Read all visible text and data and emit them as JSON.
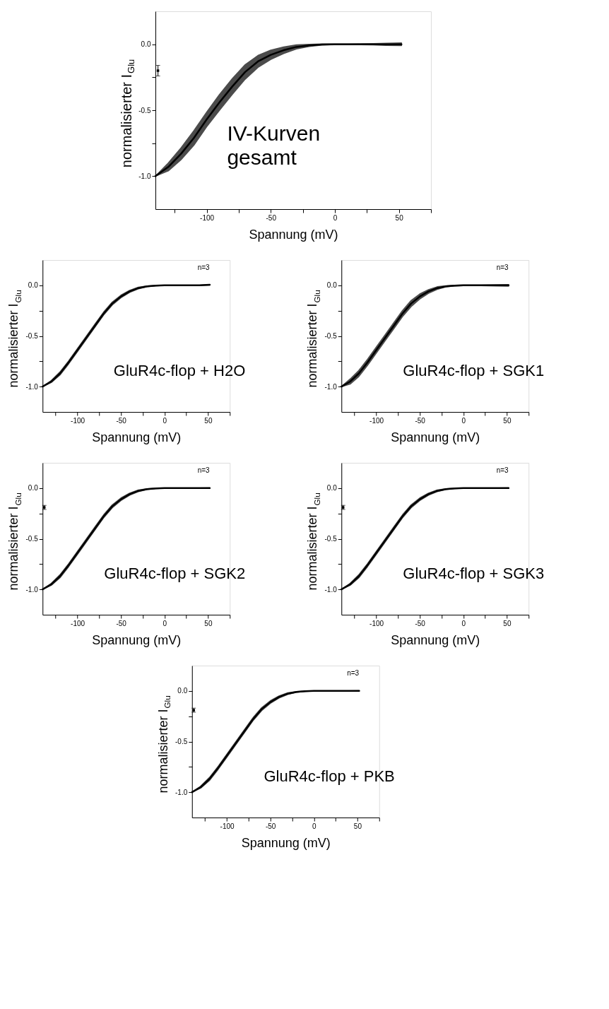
{
  "chart_data": [
    {
      "type": "line",
      "xlabel": "Spannung (mV)",
      "ylabel": "normalisierter I$_{Glu}$",
      "xlim": [
        -140,
        75
      ],
      "ylim": [
        -1.25,
        0.25
      ],
      "xticks": [
        {
          "value": -125,
          "label": null
        },
        -100,
        {
          "value": -75,
          "label": null
        },
        -50,
        {
          "value": -25,
          "label": null
        },
        0,
        {
          "value": 25,
          "label": null
        },
        50,
        {
          "value": 75,
          "label": null
        }
      ],
      "yticks": [
        {
          "value": -1,
          "label": "-1.0"
        },
        {
          "value": -0.75,
          "label": null
        },
        {
          "value": -0.5,
          "label": "-0.5"
        },
        {
          "value": -0.25,
          "label": null
        },
        {
          "value": 0,
          "label": "0.0"
        }
      ],
      "grid": false,
      "annotations": [
        "IV-Kurven\ngesamt"
      ],
      "series": [
        {
          "color": "#000000",
          "x": [
            -140,
            -130,
            -120,
            -110,
            -100,
            -90,
            -80,
            -70,
            -60,
            -50,
            -40,
            -30,
            -20,
            -10,
            0,
            10,
            20,
            30,
            40,
            52
          ],
          "values": [
            -1.0,
            -0.93,
            -0.83,
            -0.71,
            -0.57,
            -0.44,
            -0.32,
            -0.21,
            -0.13,
            -0.08,
            -0.045,
            -0.02,
            -0.008,
            -0.002,
            0,
            0,
            0,
            0,
            0,
            0
          ],
          "lower": [
            -1.0,
            -0.96,
            -0.875,
            -0.765,
            -0.625,
            -0.5,
            -0.38,
            -0.265,
            -0.175,
            -0.115,
            -0.07,
            -0.035,
            -0.016,
            -0.006,
            -0.002,
            -0.002,
            -0.003,
            -0.005,
            -0.008,
            -0.01
          ],
          "upper": [
            -1.0,
            -0.9,
            -0.785,
            -0.655,
            -0.515,
            -0.38,
            -0.26,
            -0.155,
            -0.085,
            -0.045,
            -0.02,
            -0.005,
            0,
            0.002,
            0.002,
            0.002,
            0.003,
            0.005,
            0.008,
            0.01
          ]
        },
        {
          "type": "scatter",
          "marker": "square",
          "color": "#000000",
          "x": [
            -138
          ],
          "values": [
            -0.2
          ],
          "errors": [
            [
              -0.24,
              -0.16
            ]
          ]
        }
      ]
    },
    {
      "type": "line",
      "xlabel": "Spannung (mV)",
      "ylabel": "normalisierter I$_{Glu}$",
      "xlim": [
        -140,
        75
      ],
      "ylim": [
        -1.25,
        0.25
      ],
      "xticks": [
        {
          "value": -125,
          "label": null
        },
        -100,
        {
          "value": -75,
          "label": null
        },
        -50,
        {
          "value": -25,
          "label": null
        },
        0,
        {
          "value": 25,
          "label": null
        },
        50,
        {
          "value": 75,
          "label": null
        }
      ],
      "yticks": [
        {
          "value": -1,
          "label": "-1.0"
        },
        {
          "value": -0.75,
          "label": null
        },
        {
          "value": -0.5,
          "label": "-0.5"
        },
        {
          "value": -0.25,
          "label": null
        },
        {
          "value": 0,
          "label": "0.0"
        }
      ],
      "grid": false,
      "annotations": [
        "GluR4c-flop + H2O",
        "n=3"
      ],
      "series": [
        {
          "color": "#000000",
          "x": [
            -140,
            -130,
            -120,
            -110,
            -100,
            -90,
            -80,
            -70,
            -60,
            -50,
            -40,
            -30,
            -20,
            -10,
            0,
            10,
            20,
            30,
            40,
            52
          ],
          "values": [
            -1.0,
            -0.95,
            -0.87,
            -0.76,
            -0.64,
            -0.52,
            -0.4,
            -0.28,
            -0.18,
            -0.11,
            -0.06,
            -0.027,
            -0.01,
            -0.003,
            0,
            0,
            0,
            0,
            0,
            0.005
          ],
          "lower": [
            -1.0,
            -0.96,
            -0.885,
            -0.775,
            -0.655,
            -0.535,
            -0.415,
            -0.295,
            -0.195,
            -0.123,
            -0.07,
            -0.035,
            -0.014,
            -0.005,
            -0.001,
            -0.001,
            -0.001,
            -0.001,
            -0.001,
            0.002
          ],
          "upper": [
            -1.0,
            -0.94,
            -0.855,
            -0.745,
            -0.625,
            -0.505,
            -0.385,
            -0.265,
            -0.165,
            -0.097,
            -0.05,
            -0.019,
            -0.006,
            -0.001,
            0.001,
            0.001,
            0.001,
            0.001,
            0.001,
            0.008
          ]
        }
      ]
    },
    {
      "type": "line",
      "xlabel": "Spannung (mV)",
      "ylabel": "normalisierter I$_{Glu}$",
      "xlim": [
        -140,
        75
      ],
      "ylim": [
        -1.25,
        0.25
      ],
      "xticks": [
        {
          "value": -125,
          "label": null
        },
        -100,
        {
          "value": -75,
          "label": null
        },
        -50,
        {
          "value": -25,
          "label": null
        },
        0,
        {
          "value": 25,
          "label": null
        },
        50,
        {
          "value": 75,
          "label": null
        }
      ],
      "yticks": [
        {
          "value": -1,
          "label": "-1.0"
        },
        {
          "value": -0.75,
          "label": null
        },
        {
          "value": -0.5,
          "label": "-0.5"
        },
        {
          "value": -0.25,
          "label": null
        },
        {
          "value": 0,
          "label": "0.0"
        }
      ],
      "grid": false,
      "annotations": [
        "GluR4c-flop + SGK1",
        "n=3"
      ],
      "series": [
        {
          "color": "#000000",
          "x": [
            -140,
            -130,
            -120,
            -110,
            -100,
            -90,
            -80,
            -70,
            -60,
            -50,
            -40,
            -30,
            -20,
            -10,
            0,
            10,
            20,
            30,
            40,
            52
          ],
          "values": [
            -1.0,
            -0.95,
            -0.87,
            -0.76,
            -0.64,
            -0.52,
            -0.4,
            -0.28,
            -0.18,
            -0.11,
            -0.06,
            -0.027,
            -0.01,
            -0.003,
            0,
            0,
            0,
            0,
            0,
            0
          ],
          "lower": [
            -1.0,
            -0.975,
            -0.9,
            -0.79,
            -0.67,
            -0.55,
            -0.43,
            -0.31,
            -0.21,
            -0.135,
            -0.078,
            -0.04,
            -0.016,
            -0.006,
            -0.003,
            -0.003,
            -0.003,
            -0.004,
            -0.006,
            -0.008
          ],
          "upper": [
            -1.0,
            -0.925,
            -0.84,
            -0.73,
            -0.61,
            -0.49,
            -0.37,
            -0.25,
            -0.15,
            -0.085,
            -0.042,
            -0.014,
            -0.004,
            0,
            0.003,
            0.003,
            0.003,
            0.004,
            0.006,
            0.008
          ]
        }
      ]
    },
    {
      "type": "line",
      "xlabel": "Spannung (mV)",
      "ylabel": "normalisierter I$_{Glu}$",
      "xlim": [
        -140,
        75
      ],
      "ylim": [
        -1.25,
        0.25
      ],
      "xticks": [
        {
          "value": -125,
          "label": null
        },
        -100,
        {
          "value": -75,
          "label": null
        },
        -50,
        {
          "value": -25,
          "label": null
        },
        0,
        {
          "value": 25,
          "label": null
        },
        50,
        {
          "value": 75,
          "label": null
        }
      ],
      "yticks": [
        {
          "value": -1,
          "label": "-1.0"
        },
        {
          "value": -0.75,
          "label": null
        },
        {
          "value": -0.5,
          "label": "-0.5"
        },
        {
          "value": -0.25,
          "label": null
        },
        {
          "value": 0,
          "label": "0.0"
        }
      ],
      "grid": false,
      "annotations": [
        "GluR4c-flop + SGK2",
        "n=3"
      ],
      "series": [
        {
          "color": "#000000",
          "x": [
            -140,
            -130,
            -120,
            -110,
            -100,
            -90,
            -80,
            -70,
            -60,
            -50,
            -40,
            -30,
            -20,
            -10,
            0,
            10,
            20,
            30,
            40,
            52
          ],
          "values": [
            -1.0,
            -0.95,
            -0.87,
            -0.76,
            -0.64,
            -0.52,
            -0.4,
            -0.28,
            -0.18,
            -0.11,
            -0.06,
            -0.027,
            -0.01,
            -0.003,
            0,
            0,
            0,
            0,
            0,
            0
          ],
          "lower": [
            -1.0,
            -0.96,
            -0.885,
            -0.775,
            -0.655,
            -0.535,
            -0.415,
            -0.295,
            -0.195,
            -0.123,
            -0.07,
            -0.035,
            -0.014,
            -0.005,
            -0.001,
            -0.001,
            -0.001,
            -0.001,
            -0.001,
            -0.002
          ],
          "upper": [
            -1.0,
            -0.94,
            -0.855,
            -0.745,
            -0.625,
            -0.505,
            -0.385,
            -0.265,
            -0.165,
            -0.097,
            -0.05,
            -0.019,
            -0.006,
            -0.001,
            0.001,
            0.001,
            0.001,
            0.001,
            0.001,
            0.002
          ]
        },
        {
          "type": "scatter",
          "marker": "square",
          "color": "#000000",
          "x": [
            -138
          ],
          "values": [
            -0.19
          ],
          "errors": [
            [
              -0.21,
              -0.17
            ]
          ]
        }
      ]
    },
    {
      "type": "line",
      "xlabel": "Spannung (mV)",
      "ylabel": "normalisierter I$_{Glu}$",
      "xlim": [
        -140,
        75
      ],
      "ylim": [
        -1.25,
        0.25
      ],
      "xticks": [
        {
          "value": -125,
          "label": null
        },
        -100,
        {
          "value": -75,
          "label": null
        },
        -50,
        {
          "value": -25,
          "label": null
        },
        0,
        {
          "value": 25,
          "label": null
        },
        50,
        {
          "value": 75,
          "label": null
        }
      ],
      "yticks": [
        {
          "value": -1,
          "label": "-1.0"
        },
        {
          "value": -0.75,
          "label": null
        },
        {
          "value": -0.5,
          "label": "-0.5"
        },
        {
          "value": -0.25,
          "label": null
        },
        {
          "value": 0,
          "label": "0.0"
        }
      ],
      "grid": false,
      "annotations": [
        "GluR4c-flop + SGK3",
        "n=3"
      ],
      "series": [
        {
          "color": "#000000",
          "x": [
            -140,
            -130,
            -120,
            -110,
            -100,
            -90,
            -80,
            -70,
            -60,
            -50,
            -40,
            -30,
            -20,
            -10,
            0,
            10,
            20,
            30,
            40,
            52
          ],
          "values": [
            -1.0,
            -0.95,
            -0.87,
            -0.76,
            -0.64,
            -0.52,
            -0.4,
            -0.28,
            -0.18,
            -0.11,
            -0.06,
            -0.027,
            -0.01,
            -0.003,
            0,
            0,
            0,
            0,
            0,
            0
          ],
          "lower": [
            -1.0,
            -0.96,
            -0.885,
            -0.775,
            -0.655,
            -0.535,
            -0.415,
            -0.295,
            -0.195,
            -0.123,
            -0.07,
            -0.035,
            -0.014,
            -0.005,
            -0.001,
            -0.001,
            -0.001,
            -0.001,
            -0.001,
            -0.002
          ],
          "upper": [
            -1.0,
            -0.94,
            -0.855,
            -0.745,
            -0.625,
            -0.505,
            -0.385,
            -0.265,
            -0.165,
            -0.097,
            -0.05,
            -0.019,
            -0.006,
            -0.001,
            0.001,
            0.001,
            0.001,
            0.001,
            0.001,
            0.002
          ]
        },
        {
          "type": "scatter",
          "marker": "square",
          "color": "#000000",
          "x": [
            -138
          ],
          "values": [
            -0.19
          ],
          "errors": [
            [
              -0.21,
              -0.17
            ]
          ]
        }
      ]
    },
    {
      "type": "line",
      "xlabel": "Spannung (mV)",
      "ylabel": "normalisierter I$_{Glu}$",
      "xlim": [
        -140,
        75
      ],
      "ylim": [
        -1.25,
        0.25
      ],
      "xticks": [
        {
          "value": -125,
          "label": null
        },
        -100,
        {
          "value": -75,
          "label": null
        },
        -50,
        {
          "value": -25,
          "label": null
        },
        0,
        {
          "value": 25,
          "label": null
        },
        50,
        {
          "value": 75,
          "label": null
        }
      ],
      "yticks": [
        {
          "value": -1,
          "label": "-1.0"
        },
        {
          "value": -0.75,
          "label": null
        },
        {
          "value": -0.5,
          "label": "-0.5"
        },
        {
          "value": -0.25,
          "label": null
        },
        {
          "value": 0,
          "label": "0.0"
        }
      ],
      "grid": false,
      "annotations": [
        "GluR4c-flop + PKB",
        "n=3"
      ],
      "series": [
        {
          "color": "#000000",
          "x": [
            -140,
            -130,
            -120,
            -110,
            -100,
            -90,
            -80,
            -70,
            -60,
            -50,
            -40,
            -30,
            -20,
            -10,
            0,
            10,
            20,
            30,
            40,
            52
          ],
          "values": [
            -1.0,
            -0.95,
            -0.87,
            -0.76,
            -0.64,
            -0.52,
            -0.4,
            -0.28,
            -0.18,
            -0.11,
            -0.06,
            -0.027,
            -0.01,
            -0.003,
            0,
            0,
            0,
            0,
            0,
            0
          ],
          "lower": [
            -1.0,
            -0.96,
            -0.885,
            -0.775,
            -0.655,
            -0.535,
            -0.415,
            -0.295,
            -0.195,
            -0.123,
            -0.07,
            -0.035,
            -0.014,
            -0.005,
            -0.001,
            -0.001,
            -0.001,
            -0.001,
            -0.001,
            -0.002
          ],
          "upper": [
            -1.0,
            -0.94,
            -0.855,
            -0.745,
            -0.625,
            -0.505,
            -0.385,
            -0.265,
            -0.165,
            -0.097,
            -0.05,
            -0.019,
            -0.006,
            -0.001,
            0.001,
            0.001,
            0.001,
            0.001,
            0.001,
            0.002
          ]
        },
        {
          "type": "scatter",
          "marker": "square",
          "color": "#000000",
          "x": [
            -138
          ],
          "values": [
            -0.19
          ],
          "errors": [
            [
              -0.21,
              -0.17
            ]
          ]
        }
      ]
    }
  ]
}
